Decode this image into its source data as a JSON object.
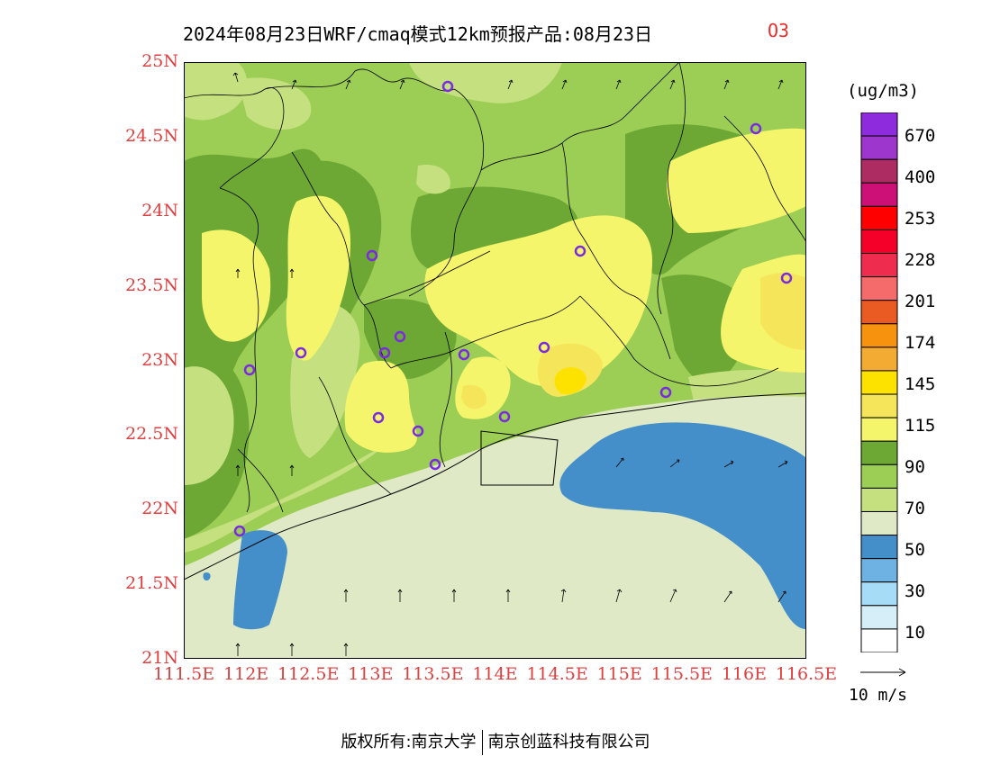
{
  "header": {
    "title": "2024年08月23日WRF/cmaq模式12km预报产品:08月23日",
    "species": "O3"
  },
  "map": {
    "y_ticks": [
      "25N",
      "24.5N",
      "24N",
      "23.5N",
      "23N",
      "22.5N",
      "22N",
      "21.5N",
      "21N"
    ],
    "x_ticks": [
      "111.5E",
      "112E",
      "112.5E",
      "113E",
      "113.5E",
      "114E",
      "114.5E",
      "115E",
      "115.5E",
      "116E",
      "116.5E"
    ],
    "lat_range": [
      21,
      25
    ],
    "lon_range": [
      111.5,
      116.5
    ],
    "sea_color": "#dfe9c6",
    "land_base_color": "#9ccd55"
  },
  "colorbar": {
    "unit": "(ug/m3)",
    "colors": [
      "#ffffff",
      "#d6eef8",
      "#a7dcf6",
      "#6db2e2",
      "#448fc9",
      "#dfe9c6",
      "#c5e07f",
      "#9ccd55",
      "#6da835",
      "#f5f56c",
      "#f5e55a",
      "#fde200",
      "#f4ab33",
      "#f7920e",
      "#ea5a23",
      "#f56b6b",
      "#ee2d4e",
      "#f50028",
      "#fe0000",
      "#cc1077",
      "#ad2d63",
      "#9c36cc",
      "#8e2bdd"
    ],
    "labels": [
      "10",
      "30",
      "50",
      "70",
      "90",
      "115",
      "145",
      "174",
      "201",
      "228",
      "253",
      "400",
      "670"
    ]
  },
  "wind": {
    "reference_label": "10 m/s"
  },
  "footer": {
    "left": "版权所有:南京大学",
    "right": "南京创蓝科技有限公司"
  }
}
